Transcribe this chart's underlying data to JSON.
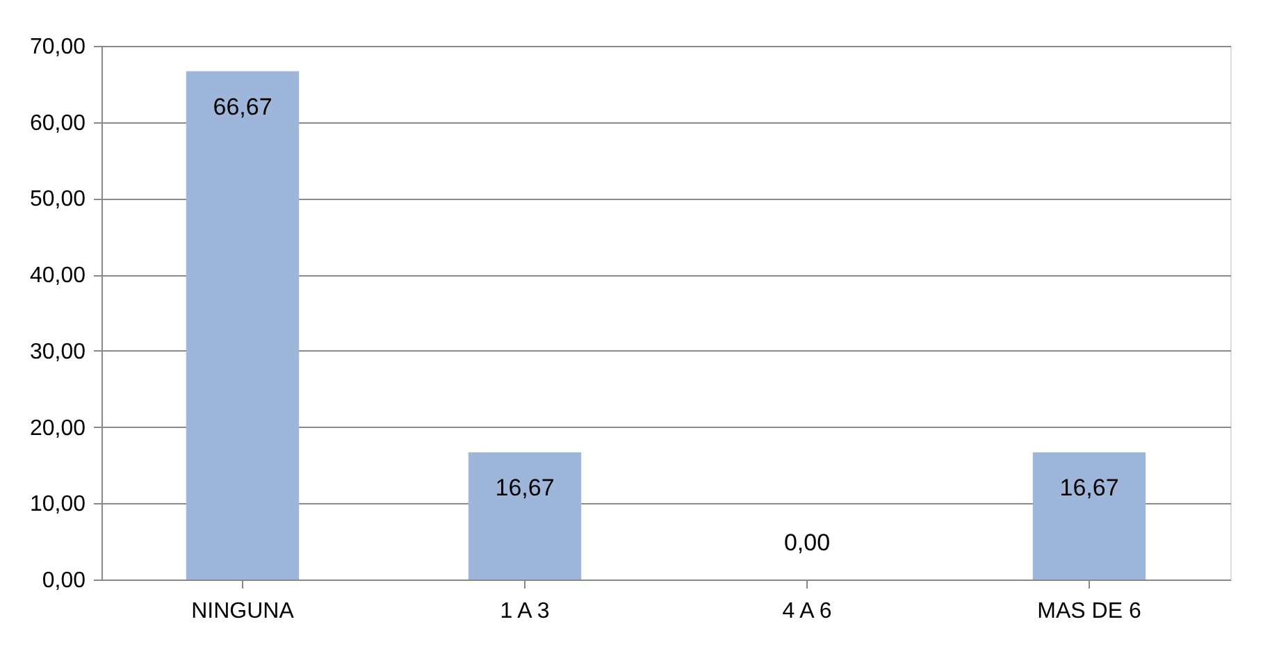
{
  "chart_data": {
    "type": "bar",
    "categories": [
      "NINGUNA",
      "1 A 3",
      "4 A 6",
      "MAS DE 6"
    ],
    "values": [
      66.67,
      16.67,
      0,
      16.67
    ],
    "value_labels": [
      "66,67",
      "16,67",
      "0,00",
      "16,67"
    ],
    "color": "#9fb6db",
    "ylim": [
      0,
      70
    ],
    "yticks": [
      {
        "value": 0,
        "label": "0,00"
      },
      {
        "value": 10,
        "label": "10,00"
      },
      {
        "value": 20,
        "label": "20,00"
      },
      {
        "value": 30,
        "label": "30,00"
      },
      {
        "value": 40,
        "label": "40,00"
      },
      {
        "value": 50,
        "label": "50,00"
      },
      {
        "value": 60,
        "label": "60,00"
      },
      {
        "value": 70,
        "label": "70,00"
      }
    ],
    "grid": "y"
  }
}
